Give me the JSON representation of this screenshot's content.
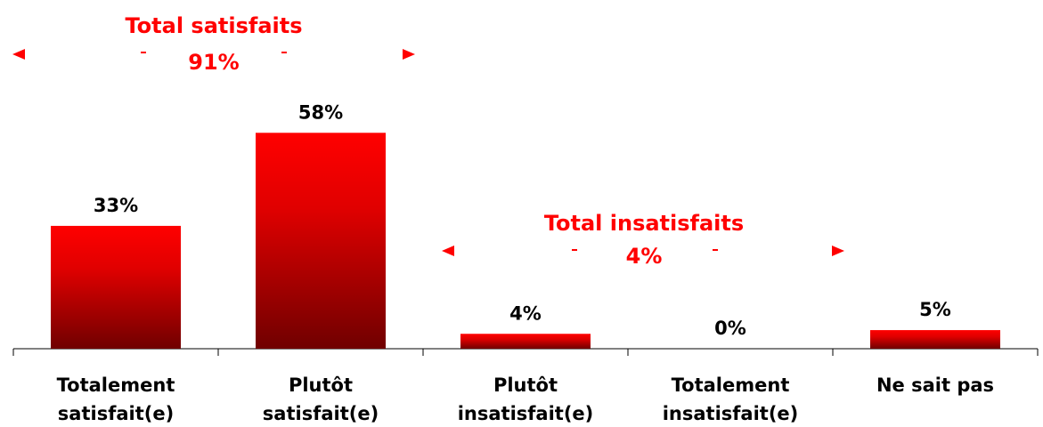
{
  "chart_data": {
    "type": "bar",
    "categories": [
      [
        "Totalement",
        "satisfait(e)"
      ],
      [
        "Plutôt",
        "satisfait(e)"
      ],
      [
        "Plutôt",
        "insatisfait(e)"
      ],
      [
        "Totalement",
        "insatisfait(e)"
      ],
      [
        "Ne sait pas"
      ]
    ],
    "values": [
      33,
      58,
      4,
      0,
      5
    ],
    "value_labels": [
      "33%",
      "58%",
      "4%",
      "0%",
      "5%"
    ],
    "color": "#ff0000",
    "ylim": [
      0,
      65
    ],
    "annotations": [
      {
        "title": "Total satisfaits",
        "label": "91%"
      },
      {
        "title": "Total insatisfaits",
        "label": "4%"
      }
    ]
  }
}
